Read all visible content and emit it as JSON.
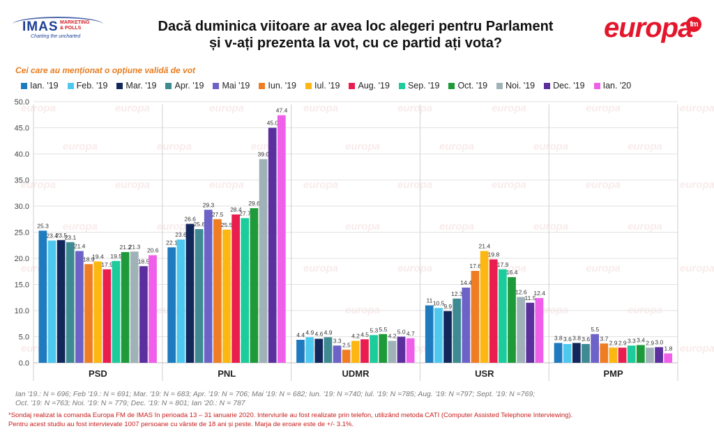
{
  "header": {
    "title_line1": "Dacă duminica viitoare ar avea loc alegeri pentru Parlament",
    "title_line2": "și v-ați prezenta la vot, cu ce partid ați vota?",
    "subtitle": "Cei care au menționat o opțiune validă de vot",
    "logo_left": "IMAS",
    "logo_left_tag1": "MARKETING",
    "logo_left_tag2": "& POLLS",
    "logo_left_slogan": "Charting the uncharted",
    "logo_right": "europa",
    "logo_right_badge": "fm"
  },
  "colors": {
    "series": [
      "#1e7bbf",
      "#4dc8ee",
      "#12275a",
      "#3d8a92",
      "#6c62c7",
      "#ef7d24",
      "#fcb712",
      "#e91e4e",
      "#1ccc9c",
      "#1e9a3a",
      "#9fb2b8",
      "#5b2f9e",
      "#f05fe9"
    ]
  },
  "chart_data": {
    "type": "bar",
    "categories": [
      "PSD",
      "PNL",
      "UDMR",
      "USR",
      "PMP"
    ],
    "ylim": [
      0,
      50
    ],
    "yticks": [
      "0.0",
      "5.0",
      "10.0",
      "15.0",
      "20.0",
      "25.0",
      "30.0",
      "35.0",
      "40.0",
      "45.0",
      "50.0"
    ],
    "grid": true,
    "legend_position": "top",
    "series": [
      {
        "name": "Ian. '19",
        "values": [
          25.3,
          22.1,
          4.4,
          11,
          3.8
        ]
      },
      {
        "name": "Feb. '19",
        "values": [
          23.4,
          23.6,
          4.9,
          10.5,
          3.6
        ]
      },
      {
        "name": "Mar. '19",
        "values": [
          23.5,
          26.6,
          4.6,
          9.9,
          3.8
        ]
      },
      {
        "name": "Apr. '19",
        "values": [
          23.1,
          25.6,
          4.9,
          12.3,
          3.6
        ]
      },
      {
        "name": "Mai '19",
        "values": [
          21.4,
          29.3,
          3.3,
          14.4,
          5.5
        ]
      },
      {
        "name": "Iun. '19",
        "values": [
          18.9,
          27.5,
          2.5,
          17.6,
          3.7
        ]
      },
      {
        "name": "Iul. '19",
        "values": [
          19.4,
          25.5,
          4.2,
          21.4,
          2.9
        ]
      },
      {
        "name": "Aug. '19",
        "values": [
          17.9,
          28.4,
          4.5,
          19.8,
          2.9
        ]
      },
      {
        "name": "Sep. '19",
        "values": [
          19.5,
          27.7,
          5.3,
          17.9,
          3.3
        ]
      },
      {
        "name": "Oct. '19",
        "values": [
          21.2,
          29.6,
          5.5,
          16.4,
          3.4
        ]
      },
      {
        "name": "Noi. '19",
        "values": [
          21.3,
          39.0,
          4.2,
          12.6,
          2.9
        ]
      },
      {
        "name": "Dec. '19",
        "values": [
          18.5,
          45.0,
          5.0,
          11.5,
          3.0
        ]
      },
      {
        "name": "Ian. '20",
        "values": [
          20.6,
          47.4,
          4.7,
          12.4,
          1.8
        ]
      }
    ],
    "value_labels": [
      [
        "25.3",
        "22.1",
        "4.4",
        "11",
        "3.8"
      ],
      [
        "23.4",
        "23.6",
        "4.9",
        "10.5",
        "3.6"
      ],
      [
        "23.5",
        "26.6",
        "4.6",
        "9.9",
        "3.8"
      ],
      [
        "23.1",
        "25.6",
        "4.9",
        "12.3",
        "3.6"
      ],
      [
        "21.4",
        "29.3",
        "3.3",
        "14.4",
        "5.5"
      ],
      [
        "18.9",
        "27.5",
        "2.5",
        "17.6",
        "3.7"
      ],
      [
        "19.4",
        "25.5",
        "4.2",
        "21.4",
        "2.9"
      ],
      [
        "17.9",
        "28.4",
        "4.5",
        "19.8",
        "2.9"
      ],
      [
        "19.5",
        "27.7",
        "5.3",
        "17.9",
        "3.3"
      ],
      [
        "21.2",
        "29.6",
        "5.5",
        "16.4",
        "3.4"
      ],
      [
        "21.3",
        "39.0",
        "4.2",
        "12.6",
        "2.9"
      ],
      [
        "18.5",
        "45.0",
        "5.0",
        "11.5",
        "3.0"
      ],
      [
        "20.6",
        "47.4",
        "4.7",
        "12.4",
        "1.8"
      ]
    ]
  },
  "footer": {
    "sample_line1": "Ian '19.: N = 696; Feb '19.: N = 691; Mar. '19: N = 683; Apr. '19: N = 706; Mai '19: N = 682; Iun. '19: N =740; Iul. '19: N =785; Aug. '19: N =797; Sept. '19: N =769;",
    "sample_line2": "Oct. '19: N =763; Noi. '19: N = 779; Dec. '19: N = 801; Ian '20.: N = 787",
    "method_line1": "*Sondaj realizat la comanda Europa FM de IMAS în perioada 13 – 31 ianuarie 2020. Interviurile au fost realizate prin telefon, utilizând metoda CATI (Computer Assisted Telephone Interviewing).",
    "method_line2": "Pentru acest studiu au fost intervievate 1007 persoane cu vârste de 18 ani și peste. Marja de eroare este de +/- 3.1%."
  }
}
